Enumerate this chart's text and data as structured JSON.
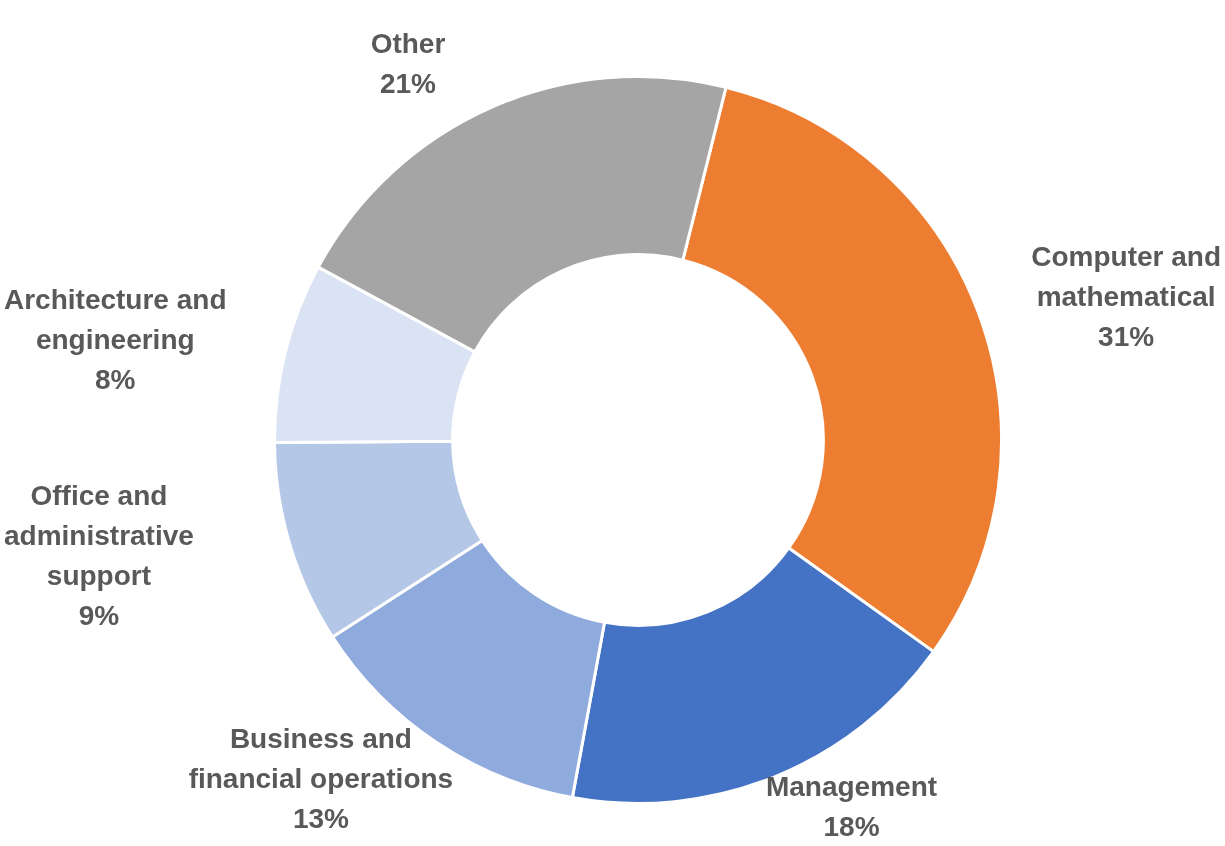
{
  "chart_data": {
    "type": "donut",
    "categories": [
      "Computer and mathematical",
      "Management",
      "Business and financial operations",
      "Office and administrative support",
      "Architecture and engineering",
      "Other"
    ],
    "values": [
      31,
      18,
      13,
      9,
      8,
      21
    ],
    "colors": [
      "#ed7d31",
      "#4472c4",
      "#8faadc",
      "#b4c7e7",
      "#dae3f3",
      "#a5a5a5"
    ],
    "value_labels": [
      "31%",
      "18%",
      "13%",
      "9%",
      "8%",
      "21%"
    ],
    "legend": false
  }
}
